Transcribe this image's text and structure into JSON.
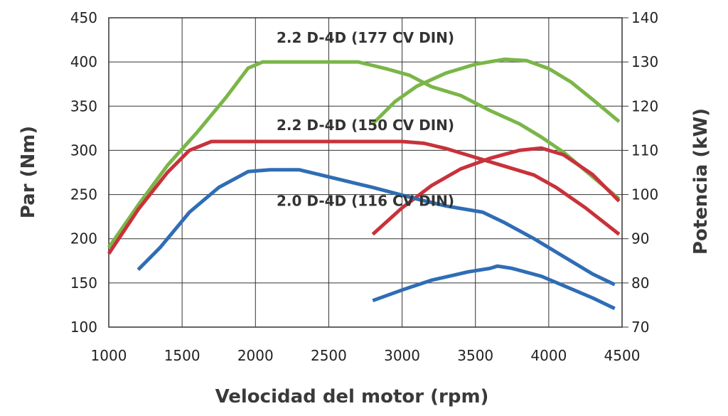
{
  "chart_data": {
    "type": "line",
    "title": "",
    "xlabel": "Velocidad del motor (rpm)",
    "ylabel": "Par (Nm)",
    "y2label": "Potencia (kW)",
    "xlim": [
      1000,
      4500
    ],
    "ylim": [
      100,
      450
    ],
    "y2lim": [
      70,
      140
    ],
    "x_ticks": [
      1000,
      1500,
      2000,
      2500,
      3000,
      3500,
      4000,
      4500
    ],
    "y_ticks": [
      100,
      150,
      200,
      250,
      300,
      350,
      400,
      450
    ],
    "y2_ticks": [
      70,
      80,
      90,
      100,
      110,
      120,
      130,
      140
    ],
    "grid": true,
    "colors": {
      "green": "#7ab648",
      "red": "#c8323a",
      "blue": "#2f6db5"
    },
    "series": [
      {
        "name": "2.2 D-4D (177 CV DIN)",
        "quantity": "Par",
        "axis": "left",
        "color": "green",
        "x": [
          1000,
          1200,
          1400,
          1600,
          1800,
          1950,
          2050,
          2200,
          2500,
          2700,
          2900,
          3050,
          3200,
          3400,
          3600,
          3800,
          3950,
          4100,
          4300,
          4480
        ],
        "y": [
          190,
          238,
          283,
          320,
          360,
          393,
          400,
          400,
          400,
          400,
          392,
          385,
          372,
          362,
          345,
          330,
          315,
          298,
          270,
          245
        ]
      },
      {
        "name": "2.2 D-4D (177 CV DIN)",
        "quantity": "Potencia",
        "axis": "right",
        "color": "green",
        "x": [
          2800,
          2950,
          3100,
          3300,
          3500,
          3700,
          3850,
          4000,
          4150,
          4300,
          4480
        ],
        "y": [
          116,
          121,
          124.5,
          127.5,
          129.5,
          130.6,
          130.3,
          128.5,
          125.5,
          121.5,
          116.5
        ]
      },
      {
        "name": "2.2 D-4D (150 CV DIN)",
        "quantity": "Par",
        "axis": "left",
        "color": "red",
        "x": [
          1000,
          1200,
          1400,
          1550,
          1700,
          2000,
          2500,
          3000,
          3150,
          3300,
          3500,
          3700,
          3900,
          4050,
          4250,
          4480
        ],
        "y": [
          183,
          233,
          275,
          300,
          310,
          310,
          310,
          310,
          308,
          302,
          292,
          282,
          272,
          258,
          235,
          205
        ]
      },
      {
        "name": "2.2 D-4D (150 CV DIN)",
        "quantity": "Potencia",
        "axis": "right",
        "color": "red",
        "x": [
          2800,
          3000,
          3200,
          3400,
          3600,
          3800,
          3950,
          4100,
          4300,
          4480
        ],
        "y": [
          91,
          97,
          102,
          105.8,
          108.2,
          110,
          110.5,
          109,
          104.5,
          98.5
        ]
      },
      {
        "name": "2.0 D-4D (116 CV DIN)",
        "quantity": "Par",
        "axis": "left",
        "color": "blue",
        "x": [
          1200,
          1350,
          1550,
          1750,
          1950,
          2100,
          2300,
          2500,
          2800,
          3100,
          3300,
          3550,
          3700,
          3900,
          4100,
          4300,
          4450
        ],
        "y": [
          165,
          190,
          230,
          258,
          276,
          278,
          278,
          270,
          258,
          245,
          237,
          230,
          218,
          200,
          180,
          160,
          148
        ]
      },
      {
        "name": "2.0 D-4D (116 CV DIN)",
        "quantity": "Potencia",
        "axis": "right",
        "color": "blue",
        "x": [
          2800,
          3000,
          3200,
          3450,
          3600,
          3650,
          3750,
          3950,
          4100,
          4300,
          4450
        ],
        "y": [
          76,
          78.4,
          80.6,
          82.5,
          83.3,
          83.8,
          83.3,
          81.5,
          79.4,
          76.6,
          74.2
        ]
      }
    ],
    "annotations": [
      {
        "text": "2.2 D-4D (177 CV DIN)",
        "x": 2750,
        "y": 422
      },
      {
        "text": "2.2 D-4D (150 CV DIN)",
        "x": 2750,
        "y": 323
      },
      {
        "text": "2.0 D-4D (116 CV DIN)",
        "x": 2750,
        "y": 237
      }
    ]
  }
}
